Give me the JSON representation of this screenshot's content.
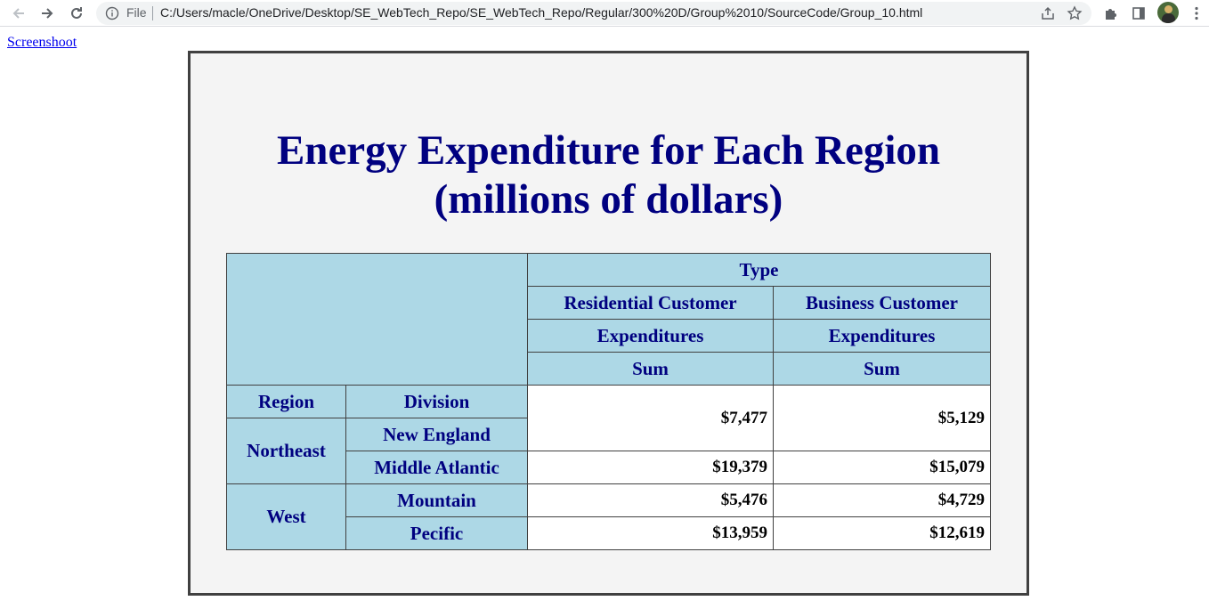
{
  "browser": {
    "file_label": "File",
    "url": "C:/Users/macle/OneDrive/Desktop/SE_WebTech_Repo/SE_WebTech_Repo/Regular/300%20D/Group%2010/SourceCode/Group_10.html"
  },
  "page": {
    "link_text": "Screenshoot",
    "title_line1": "Energy Expenditure for Each Region",
    "title_line2": "(millions of dollars)"
  },
  "table": {
    "type_header": "Type",
    "col_groups": [
      "Residential Customer",
      "Business Customer"
    ],
    "measure": "Expenditures",
    "stat": "Sum",
    "row_headers": {
      "region": "Region",
      "division": "Division"
    },
    "rows": [
      {
        "region": "Northeast",
        "division": "New England",
        "residential": "$7,477",
        "business": "$5,129"
      },
      {
        "region": "Northeast",
        "division": "Middle Atlantic",
        "residential": "$19,379",
        "business": "$15,079"
      },
      {
        "region": "West",
        "division": "Mountain",
        "residential": "$5,476",
        "business": "$4,729"
      },
      {
        "region": "West",
        "division": "Pecific",
        "residential": "$13,959",
        "business": "$12,619"
      }
    ]
  },
  "colors": {
    "header_bg": "#add8e6",
    "header_text": "#000080",
    "frame_bg": "#f4f4f4"
  }
}
